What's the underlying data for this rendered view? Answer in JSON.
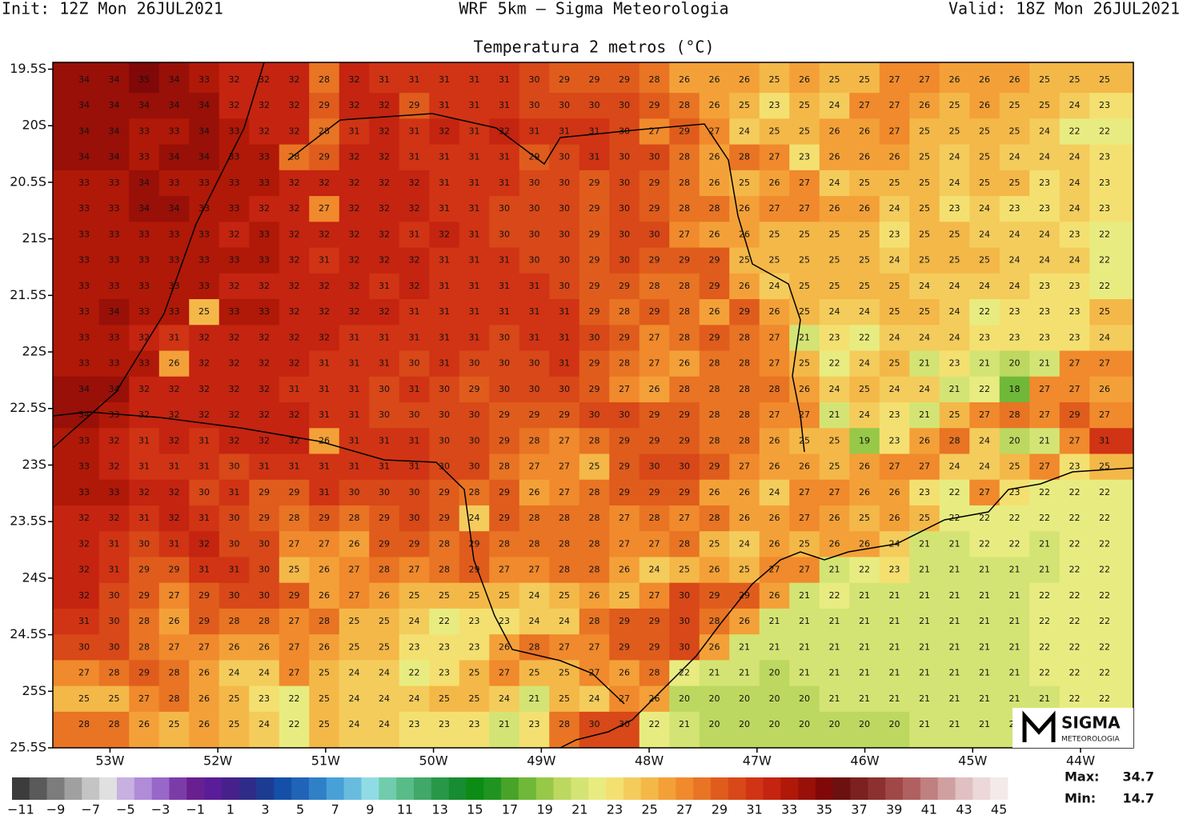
{
  "header": {
    "init": "Init: 12Z Mon 26JUL2021",
    "model": "WRF 5km — Sigma Meteorologia",
    "valid": "Valid: 18Z Mon 26JUL2021"
  },
  "chart_data": {
    "type": "grid-map",
    "title": "Temperatura 2 metros (°C)",
    "xlim": [
      -53.53,
      -43.51
    ],
    "ylim": [
      -25.5,
      -19.44
    ],
    "xticks": [
      {
        "value": -53,
        "label": "53W"
      },
      {
        "value": -52,
        "label": "52W"
      },
      {
        "value": -51,
        "label": "51W"
      },
      {
        "value": -50,
        "label": "50W"
      },
      {
        "value": -49,
        "label": "49W"
      },
      {
        "value": -48,
        "label": "48W"
      },
      {
        "value": -47,
        "label": "47W"
      },
      {
        "value": -46,
        "label": "46W"
      },
      {
        "value": -45,
        "label": "45W"
      },
      {
        "value": -44,
        "label": "44W"
      }
    ],
    "yticks": [
      {
        "value": -19.5,
        "label": "19.5S"
      },
      {
        "value": -20,
        "label": "20S"
      },
      {
        "value": -20.5,
        "label": "20.5S"
      },
      {
        "value": -21,
        "label": "21S"
      },
      {
        "value": -21.5,
        "label": "21.5S"
      },
      {
        "value": -22,
        "label": "22S"
      },
      {
        "value": -22.5,
        "label": "22.5S"
      },
      {
        "value": -23,
        "label": "23S"
      },
      {
        "value": -23.5,
        "label": "23.5S"
      },
      {
        "value": -24,
        "label": "24S"
      },
      {
        "value": -24.5,
        "label": "24.5S"
      },
      {
        "value": -25,
        "label": "25S"
      },
      {
        "value": -25.5,
        "label": "25.5S"
      }
    ],
    "grid_values": [
      [
        34,
        34,
        35,
        34,
        33,
        32,
        32,
        32,
        28,
        32,
        31,
        31,
        31,
        31,
        31,
        30,
        29,
        29,
        29,
        28,
        26,
        26,
        26,
        25,
        26,
        25,
        25,
        27,
        27,
        26,
        26,
        26,
        25,
        25,
        25
      ],
      [
        34,
        34,
        34,
        34,
        34,
        32,
        32,
        32,
        29,
        32,
        32,
        29,
        31,
        31,
        31,
        30,
        30,
        30,
        30,
        29,
        28,
        26,
        25,
        23,
        25,
        24,
        27,
        27,
        26,
        25,
        26,
        25,
        25,
        24,
        23
      ],
      [
        34,
        34,
        33,
        33,
        34,
        33,
        32,
        32,
        28,
        31,
        32,
        31,
        32,
        31,
        32,
        31,
        31,
        31,
        30,
        27,
        29,
        27,
        24,
        25,
        25,
        26,
        26,
        27,
        25,
        25,
        25,
        25,
        24,
        22,
        22
      ],
      [
        34,
        34,
        33,
        34,
        34,
        33,
        33,
        28,
        29,
        32,
        32,
        31,
        31,
        31,
        31,
        29,
        30,
        31,
        30,
        30,
        28,
        26,
        28,
        27,
        23,
        26,
        26,
        26,
        25,
        24,
        25,
        24,
        24,
        24,
        23
      ],
      [
        33,
        33,
        34,
        33,
        33,
        33,
        33,
        32,
        32,
        32,
        32,
        32,
        31,
        31,
        31,
        30,
        30,
        29,
        30,
        29,
        28,
        26,
        25,
        26,
        27,
        24,
        25,
        25,
        25,
        24,
        25,
        25,
        23,
        24,
        23
      ],
      [
        33,
        33,
        34,
        34,
        33,
        33,
        32,
        32,
        27,
        32,
        32,
        32,
        31,
        31,
        30,
        30,
        30,
        29,
        30,
        29,
        28,
        28,
        26,
        27,
        27,
        26,
        26,
        24,
        25,
        23,
        24,
        23,
        23,
        24,
        23
      ],
      [
        33,
        33,
        33,
        33,
        33,
        32,
        33,
        32,
        32,
        32,
        32,
        31,
        32,
        31,
        30,
        30,
        30,
        29,
        30,
        30,
        27,
        26,
        26,
        25,
        25,
        25,
        25,
        23,
        25,
        25,
        24,
        24,
        24,
        23,
        22
      ],
      [
        33,
        33,
        33,
        33,
        33,
        33,
        33,
        32,
        31,
        32,
        32,
        32,
        31,
        31,
        31,
        30,
        30,
        29,
        30,
        29,
        29,
        29,
        25,
        25,
        25,
        25,
        25,
        24,
        25,
        25,
        25,
        24,
        24,
        24,
        22
      ],
      [
        33,
        33,
        33,
        33,
        33,
        32,
        32,
        32,
        32,
        32,
        31,
        32,
        31,
        31,
        31,
        31,
        30,
        29,
        29,
        28,
        28,
        29,
        26,
        24,
        25,
        25,
        25,
        25,
        24,
        24,
        24,
        24,
        23,
        23,
        22
      ],
      [
        33,
        34,
        33,
        33,
        25,
        33,
        33,
        32,
        32,
        32,
        32,
        31,
        31,
        31,
        31,
        31,
        31,
        29,
        28,
        29,
        28,
        26,
        29,
        26,
        25,
        24,
        24,
        25,
        25,
        24,
        22,
        23,
        23,
        23,
        25
      ],
      [
        33,
        33,
        32,
        31,
        32,
        32,
        32,
        32,
        32,
        31,
        31,
        31,
        31,
        31,
        30,
        31,
        31,
        30,
        29,
        27,
        28,
        29,
        28,
        27,
        21,
        23,
        22,
        24,
        24,
        24,
        23,
        23,
        23,
        23,
        24
      ],
      [
        33,
        33,
        33,
        26,
        32,
        32,
        32,
        32,
        31,
        31,
        31,
        30,
        31,
        30,
        30,
        30,
        31,
        29,
        28,
        27,
        26,
        28,
        28,
        27,
        25,
        22,
        24,
        25,
        21,
        23,
        21,
        20,
        21,
        27,
        27
      ],
      [
        34,
        34,
        32,
        32,
        32,
        32,
        32,
        31,
        31,
        31,
        30,
        31,
        30,
        29,
        30,
        30,
        30,
        29,
        27,
        26,
        28,
        28,
        28,
        28,
        26,
        24,
        25,
        24,
        24,
        21,
        22,
        18,
        27,
        27,
        26
      ],
      [
        34,
        33,
        32,
        32,
        32,
        32,
        32,
        32,
        31,
        31,
        30,
        30,
        30,
        30,
        29,
        29,
        29,
        30,
        30,
        29,
        29,
        28,
        28,
        27,
        27,
        21,
        24,
        23,
        21,
        25,
        27,
        28,
        27,
        29,
        27
      ],
      [
        33,
        32,
        31,
        32,
        31,
        32,
        32,
        32,
        26,
        31,
        31,
        31,
        30,
        30,
        29,
        28,
        27,
        28,
        29,
        29,
        29,
        28,
        28,
        26,
        25,
        25,
        19,
        23,
        26,
        28,
        24,
        20,
        21,
        27,
        31
      ],
      [
        33,
        32,
        31,
        31,
        31,
        30,
        31,
        31,
        31,
        31,
        31,
        31,
        30,
        30,
        28,
        27,
        27,
        25,
        29,
        30,
        30,
        29,
        27,
        26,
        26,
        25,
        26,
        27,
        27,
        24,
        24,
        25,
        27,
        23,
        25
      ],
      [
        33,
        33,
        32,
        32,
        30,
        31,
        29,
        29,
        31,
        30,
        30,
        30,
        29,
        28,
        29,
        26,
        27,
        28,
        29,
        29,
        29,
        26,
        26,
        24,
        27,
        27,
        26,
        26,
        23,
        22,
        27,
        23,
        22,
        22,
        22
      ],
      [
        32,
        32,
        31,
        32,
        31,
        30,
        29,
        28,
        29,
        28,
        29,
        30,
        29,
        24,
        29,
        28,
        28,
        28,
        27,
        28,
        27,
        28,
        26,
        26,
        27,
        26,
        25,
        26,
        25,
        22,
        22,
        22,
        22,
        22,
        22
      ],
      [
        32,
        31,
        30,
        31,
        32,
        30,
        30,
        27,
        27,
        26,
        29,
        29,
        28,
        29,
        28,
        28,
        28,
        28,
        27,
        27,
        28,
        25,
        24,
        26,
        25,
        26,
        26,
        24,
        21,
        21,
        22,
        22,
        21,
        22,
        22
      ],
      [
        32,
        31,
        29,
        29,
        31,
        31,
        30,
        25,
        26,
        27,
        28,
        27,
        28,
        29,
        27,
        27,
        28,
        28,
        26,
        24,
        25,
        26,
        25,
        27,
        27,
        21,
        22,
        23,
        21,
        21,
        21,
        21,
        21,
        22,
        22
      ],
      [
        32,
        30,
        29,
        27,
        29,
        30,
        30,
        29,
        26,
        27,
        26,
        25,
        25,
        25,
        25,
        24,
        25,
        26,
        25,
        27,
        30,
        29,
        29,
        26,
        21,
        22,
        21,
        21,
        21,
        21,
        21,
        21,
        22,
        22,
        22
      ],
      [
        31,
        30,
        28,
        26,
        29,
        28,
        28,
        27,
        28,
        25,
        25,
        24,
        22,
        23,
        23,
        24,
        24,
        28,
        29,
        29,
        30,
        28,
        26,
        21,
        21,
        21,
        21,
        21,
        21,
        21,
        21,
        21,
        22,
        22,
        22
      ],
      [
        30,
        30,
        28,
        27,
        27,
        26,
        26,
        27,
        26,
        25,
        25,
        23,
        23,
        23,
        26,
        28,
        27,
        27,
        29,
        29,
        30,
        26,
        21,
        21,
        21,
        21,
        21,
        21,
        21,
        21,
        21,
        21,
        22,
        22,
        22
      ],
      [
        27,
        28,
        29,
        28,
        26,
        24,
        24,
        27,
        25,
        24,
        24,
        22,
        23,
        25,
        27,
        25,
        25,
        27,
        26,
        28,
        22,
        21,
        21,
        20,
        21,
        21,
        21,
        21,
        21,
        21,
        21,
        21,
        22,
        22,
        22
      ],
      [
        25,
        25,
        27,
        28,
        26,
        25,
        23,
        22,
        25,
        24,
        24,
        24,
        25,
        25,
        24,
        21,
        25,
        24,
        27,
        26,
        20,
        20,
        20,
        20,
        20,
        21,
        21,
        21,
        21,
        21,
        21,
        21,
        21,
        22,
        22
      ],
      [
        28,
        28,
        26,
        25,
        26,
        25,
        24,
        22,
        25,
        24,
        24,
        23,
        23,
        23,
        21,
        23,
        28,
        30,
        30,
        22,
        21,
        20,
        20,
        20,
        20,
        20,
        20,
        20,
        21,
        21,
        21,
        21
      ]
    ]
  },
  "colorbar": {
    "ticks": [
      {
        "value": -11,
        "label": "−11"
      },
      {
        "value": -9,
        "label": "−9"
      },
      {
        "value": -7,
        "label": "−7"
      },
      {
        "value": -5,
        "label": "−5"
      },
      {
        "value": -3,
        "label": "−3"
      },
      {
        "value": -1,
        "label": "−1"
      },
      1,
      3,
      5,
      7,
      9,
      11,
      13,
      15,
      17,
      19,
      21,
      23,
      25,
      27,
      29,
      31,
      33,
      35,
      37,
      39,
      41,
      43,
      45
    ],
    "colors": [
      "#3c3c3c",
      "#5a5a5a",
      "#7c7c7c",
      "#a0a0a0",
      "#c4c4c4",
      "#e0e0e0",
      "#c8b0e0",
      "#b08cd8",
      "#9868c8",
      "#7c3ca8",
      "#682090",
      "#5a1c98",
      "#48208c",
      "#2e2c88",
      "#1c3c94",
      "#1450a8",
      "#2064b8",
      "#3080c8",
      "#48a0d8",
      "#68bce0",
      "#90dce4",
      "#70ccac",
      "#58bc88",
      "#40a868",
      "#289848",
      "#188c30",
      "#0c8c14",
      "#209420",
      "#48a428",
      "#70b838",
      "#98c848",
      "#bcd860",
      "#d4e474",
      "#e8ec80",
      "#f4e070",
      "#f4cc5c",
      "#f4b848",
      "#f4a038",
      "#f08a2c",
      "#e87424",
      "#e05c1c",
      "#d84818",
      "#d03414",
      "#c42410",
      "#b01808",
      "#981008",
      "#800808",
      "#6c1010",
      "#7c2020",
      "#8c3030",
      "#a04848",
      "#b06060",
      "#c08080",
      "#d0a0a0",
      "#e0c0c0",
      "#ecd8d8",
      "#f4eaea"
    ]
  },
  "stats": {
    "max_label": "Max:",
    "max": 34.7,
    "min_label": "Min:",
    "min": 14.7
  },
  "logo": {
    "name": "SIGMA",
    "subtitle": "METEOROLOGIA"
  }
}
